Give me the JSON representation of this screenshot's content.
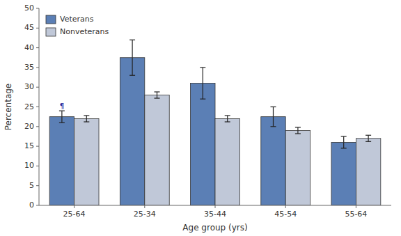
{
  "chart_data": {
    "type": "bar",
    "categories": [
      "25-64",
      "25-34",
      "35-44",
      "45-54",
      "55-64"
    ],
    "series": [
      {
        "name": "Veterans",
        "color": "#5b7fb5",
        "values": [
          22.5,
          37.5,
          31.0,
          22.5,
          16.0
        ],
        "error_low": [
          1.5,
          4.5,
          4.0,
          2.5,
          1.5
        ],
        "error_high": [
          1.5,
          4.5,
          4.0,
          2.5,
          1.5
        ]
      },
      {
        "name": "Nonveterans",
        "color": "#c0c8d8",
        "values": [
          22.0,
          28.0,
          22.0,
          19.0,
          17.0
        ],
        "error_low": [
          0.8,
          0.8,
          0.8,
          0.8,
          0.8
        ],
        "error_high": [
          0.8,
          0.8,
          0.8,
          0.8,
          0.8
        ]
      }
    ],
    "xlabel": "Age group (yrs)",
    "ylabel": "Percentage",
    "ylim": [
      0,
      50
    ],
    "yticks": [
      0,
      5,
      10,
      15,
      20,
      25,
      30,
      35,
      40,
      45,
      50
    ],
    "grid": false,
    "legend": "upper left",
    "annotations": [
      {
        "text": "¶",
        "category": "25-64",
        "series": "Veterans",
        "y": 24.2
      }
    ]
  }
}
